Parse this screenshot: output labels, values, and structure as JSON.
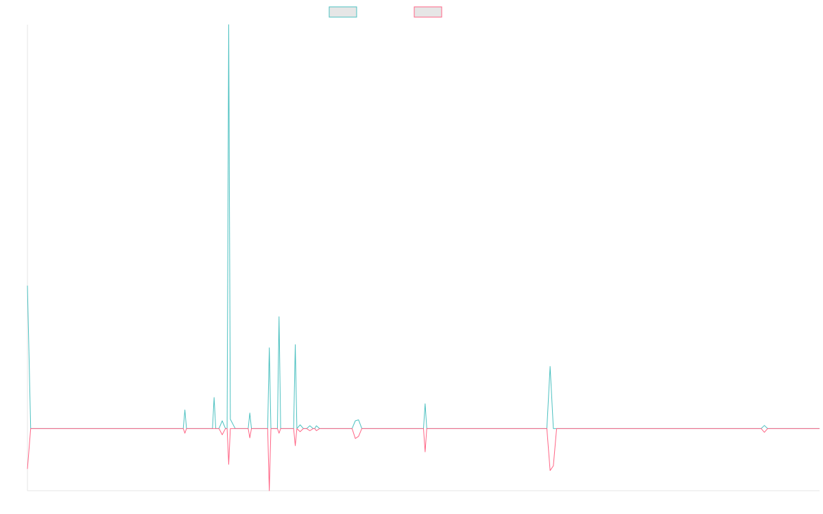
{
  "chart_data": {
    "type": "line",
    "title": "",
    "xlabel": "",
    "ylabel": "",
    "grid": false,
    "legend_position": "top",
    "x_count": 244,
    "ylim": [
      -20,
      130
    ],
    "series": [
      {
        "name": "",
        "color": "#4bc0c0",
        "fill": "#e6e6e6",
        "points": [
          [
            0,
            46
          ],
          [
            1,
            0
          ],
          [
            24,
            0
          ],
          [
            48,
            0
          ],
          [
            48.5,
            6
          ],
          [
            49,
            0
          ],
          [
            57,
            0
          ],
          [
            57.5,
            10
          ],
          [
            58,
            0
          ],
          [
            59,
            0
          ],
          [
            60,
            2.5
          ],
          [
            61,
            0
          ],
          [
            61.5,
            0
          ],
          [
            62,
            130
          ],
          [
            62.5,
            3
          ],
          [
            64,
            0
          ],
          [
            68,
            0
          ],
          [
            68.5,
            5
          ],
          [
            69,
            0
          ],
          [
            74,
            0
          ],
          [
            74.5,
            26
          ],
          [
            75,
            0
          ],
          [
            77,
            0
          ],
          [
            77.5,
            36
          ],
          [
            78,
            0
          ],
          [
            82,
            0
          ],
          [
            82.5,
            27
          ],
          [
            83,
            0
          ],
          [
            84,
            1.2
          ],
          [
            85,
            0
          ],
          [
            86,
            0
          ],
          [
            87,
            0.9
          ],
          [
            88,
            0
          ],
          [
            88.5,
            0
          ],
          [
            89,
            0.9
          ],
          [
            90,
            0
          ],
          [
            100,
            0
          ],
          [
            101,
            2.5
          ],
          [
            102,
            2.8
          ],
          [
            103,
            0
          ],
          [
            106,
            0
          ],
          [
            108,
            0
          ],
          [
            122,
            0
          ],
          [
            122.5,
            8
          ],
          [
            123,
            0
          ],
          [
            160,
            0
          ],
          [
            161,
            20
          ],
          [
            162,
            0
          ],
          [
            165,
            0
          ],
          [
            175,
            0
          ],
          [
            176,
            0
          ],
          [
            226,
            0
          ],
          [
            227,
            1.0
          ],
          [
            228,
            0
          ],
          [
            234,
            0
          ],
          [
            244,
            0
          ]
        ]
      },
      {
        "name": "",
        "color": "#ff6384",
        "fill": "#e6e6e6",
        "points": [
          [
            0,
            -13
          ],
          [
            1,
            0
          ],
          [
            24,
            0
          ],
          [
            48,
            0
          ],
          [
            48.5,
            -1.5
          ],
          [
            49,
            0
          ],
          [
            57,
            0
          ],
          [
            58,
            0
          ],
          [
            59,
            0
          ],
          [
            60,
            -2
          ],
          [
            61,
            0
          ],
          [
            61.5,
            0
          ],
          [
            62,
            -11.5
          ],
          [
            62.5,
            0
          ],
          [
            64,
            0
          ],
          [
            68,
            0
          ],
          [
            68.5,
            -3
          ],
          [
            69,
            0
          ],
          [
            74,
            0
          ],
          [
            74.5,
            -20
          ],
          [
            75,
            0
          ],
          [
            77,
            0
          ],
          [
            77.5,
            -1.5
          ],
          [
            78,
            0
          ],
          [
            82,
            0
          ],
          [
            82.5,
            -5.5
          ],
          [
            83,
            0
          ],
          [
            84,
            -1.0
          ],
          [
            85,
            0
          ],
          [
            86,
            0
          ],
          [
            87,
            -0.7
          ],
          [
            88,
            0
          ],
          [
            88.5,
            0
          ],
          [
            89,
            -0.7
          ],
          [
            90,
            0
          ],
          [
            100,
            0
          ],
          [
            101,
            -3.2
          ],
          [
            102,
            -2.5
          ],
          [
            103,
            0
          ],
          [
            106,
            0
          ],
          [
            108,
            0
          ],
          [
            122,
            0
          ],
          [
            122.5,
            -7.5
          ],
          [
            123,
            0
          ],
          [
            160,
            0
          ],
          [
            161,
            -13.5
          ],
          [
            162,
            -12
          ],
          [
            163,
            0
          ],
          [
            165,
            0
          ],
          [
            175,
            0
          ],
          [
            176,
            0
          ],
          [
            226,
            0
          ],
          [
            227,
            -1.2
          ],
          [
            228,
            0
          ],
          [
            234,
            0
          ],
          [
            244,
            0
          ]
        ]
      }
    ]
  }
}
